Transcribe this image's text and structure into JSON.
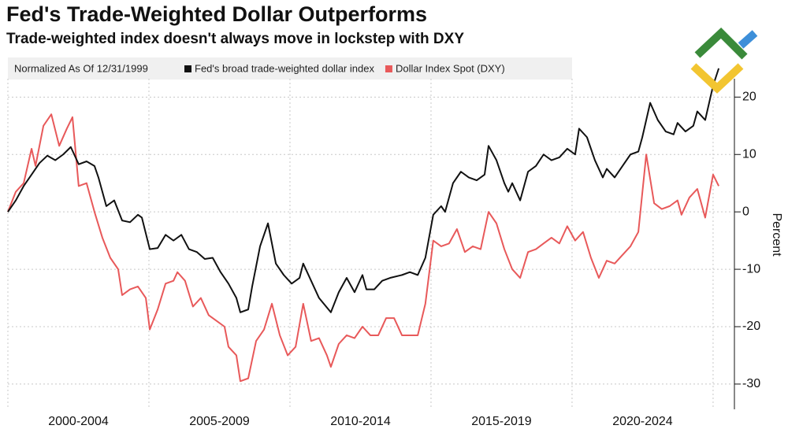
{
  "chart_data": {
    "type": "line",
    "title": "Fed's Trade-Weighted Dollar Outperforms",
    "subtitle": "Trade-weighted index doesn't always move in lockstep with DXY",
    "legend_title": "Normalized As Of 12/31/1999",
    "y_label": "Percent",
    "x_band_labels": [
      "2000-2004",
      "2005-2009",
      "2010-2014",
      "2015-2019",
      "2020-2024"
    ],
    "xlim": [
      0,
      25.7
    ],
    "xticks": [
      0,
      5,
      10,
      15,
      20,
      25
    ],
    "ylim": [
      -34.4,
      23.2
    ],
    "yticks": [
      -30,
      -20,
      -10,
      0,
      10,
      20
    ],
    "grid": true,
    "series": [
      {
        "name": "Fed's broad trade-weighted dollar index",
        "color": "#111111",
        "x": [
          0,
          0.28,
          0.56,
          0.84,
          1.12,
          1.4,
          1.68,
          1.96,
          2.23,
          2.51,
          2.79,
          3.07,
          3.21,
          3.49,
          3.77,
          4.05,
          4.33,
          4.61,
          4.75,
          5.03,
          5.31,
          5.59,
          5.87,
          6.15,
          6.42,
          6.7,
          6.98,
          7.26,
          7.54,
          7.82,
          8.1,
          8.24,
          8.52,
          8.66,
          8.94,
          9.22,
          9.5,
          9.78,
          10.06,
          10.34,
          10.47,
          10.75,
          11.03,
          11.45,
          11.73,
          12.01,
          12.29,
          12.57,
          12.71,
          12.99,
          13.27,
          13.55,
          13.97,
          14.25,
          14.53,
          14.8,
          15.08,
          15.36,
          15.5,
          15.78,
          16.06,
          16.34,
          16.62,
          16.9,
          17.04,
          17.32,
          17.6,
          17.74,
          17.88,
          18.16,
          18.44,
          18.72,
          18.99,
          19.27,
          19.55,
          19.83,
          20.11,
          20.25,
          20.53,
          20.81,
          21.09,
          21.23,
          21.51,
          21.79,
          22.07,
          22.35,
          22.49,
          22.77,
          23.04,
          23.32,
          23.6,
          23.74,
          24.02,
          24.3,
          24.44,
          24.72,
          25,
          25.2
        ],
        "values": [
          0,
          2,
          4.5,
          6.5,
          8.5,
          9.8,
          9,
          10,
          11.3,
          8.3,
          8.8,
          8,
          6,
          1,
          2,
          -1.5,
          -1.8,
          -0.5,
          -1,
          -6.5,
          -6.3,
          -4,
          -5,
          -4,
          -6.5,
          -7,
          -8.2,
          -8,
          -10.5,
          -12.5,
          -15,
          -17.5,
          -17,
          -13,
          -6,
          -2,
          -9,
          -11,
          -12.5,
          -11.5,
          -9,
          -12,
          -15,
          -17.5,
          -14,
          -11.5,
          -14,
          -11,
          -13.5,
          -13.5,
          -12,
          -11.5,
          -11,
          -10.5,
          -11,
          -8,
          -0.5,
          1,
          0,
          5,
          7,
          6,
          5.5,
          6.5,
          11.5,
          9,
          5,
          3.5,
          5,
          2,
          7,
          8,
          10,
          9,
          9.5,
          11,
          10,
          14.5,
          13,
          9,
          6,
          7.5,
          6,
          8,
          10,
          10.5,
          13,
          19,
          16,
          14,
          13.5,
          15.5,
          14,
          15,
          17.5,
          16,
          22,
          25
        ]
      },
      {
        "name": "Dollar Index Spot (DXY)",
        "color": "#e8595a",
        "x": [
          0,
          0.28,
          0.56,
          0.84,
          0.98,
          1.26,
          1.54,
          1.82,
          2.09,
          2.29,
          2.51,
          2.79,
          3.07,
          3.35,
          3.63,
          3.91,
          4.05,
          4.33,
          4.61,
          4.89,
          5.03,
          5.31,
          5.59,
          5.87,
          6.01,
          6.28,
          6.56,
          6.84,
          7.12,
          7.4,
          7.68,
          7.82,
          8.1,
          8.24,
          8.52,
          8.8,
          9.08,
          9.36,
          9.64,
          9.92,
          10.2,
          10.47,
          10.75,
          11.03,
          11.31,
          11.45,
          11.73,
          12.01,
          12.29,
          12.57,
          12.85,
          13.13,
          13.41,
          13.69,
          13.97,
          14.25,
          14.53,
          14.8,
          15.08,
          15.36,
          15.64,
          15.92,
          16.2,
          16.48,
          16.76,
          17.04,
          17.32,
          17.6,
          17.88,
          18.16,
          18.44,
          18.72,
          18.99,
          19.27,
          19.55,
          19.83,
          20.11,
          20.39,
          20.67,
          20.95,
          21.23,
          21.51,
          21.79,
          22.07,
          22.35,
          22.63,
          22.91,
          23.18,
          23.46,
          23.74,
          23.88,
          24.16,
          24.44,
          24.72,
          25,
          25.2
        ],
        "values": [
          0,
          3.5,
          5,
          11,
          8,
          15,
          17,
          11.5,
          14.5,
          16.5,
          4.5,
          5,
          0,
          -4.5,
          -8,
          -10,
          -14.5,
          -13.5,
          -13,
          -15,
          -20.5,
          -17,
          -12.5,
          -12,
          -10.5,
          -12,
          -16.5,
          -15,
          -18,
          -19,
          -20,
          -23.5,
          -25,
          -29.5,
          -29,
          -22.5,
          -20.5,
          -16,
          -21.5,
          -25,
          -23.5,
          -16,
          -22.5,
          -22,
          -25,
          -27,
          -23,
          -21.5,
          -22,
          -20,
          -21.5,
          -21.5,
          -18.5,
          -18.5,
          -21.5,
          -21.5,
          -21.5,
          -16,
          -5,
          -6,
          -5.5,
          -3,
          -7,
          -6,
          -6.5,
          0,
          -2,
          -6.5,
          -10,
          -11.5,
          -7,
          -6.5,
          -5.5,
          -4.5,
          -5.5,
          -2.5,
          -5,
          -3.5,
          -8,
          -11.5,
          -8.5,
          -9,
          -7.5,
          -6,
          -3.5,
          10,
          1.5,
          0.5,
          1,
          2,
          -0.5,
          2.5,
          4,
          -1,
          6.5,
          4.5
        ]
      }
    ]
  }
}
